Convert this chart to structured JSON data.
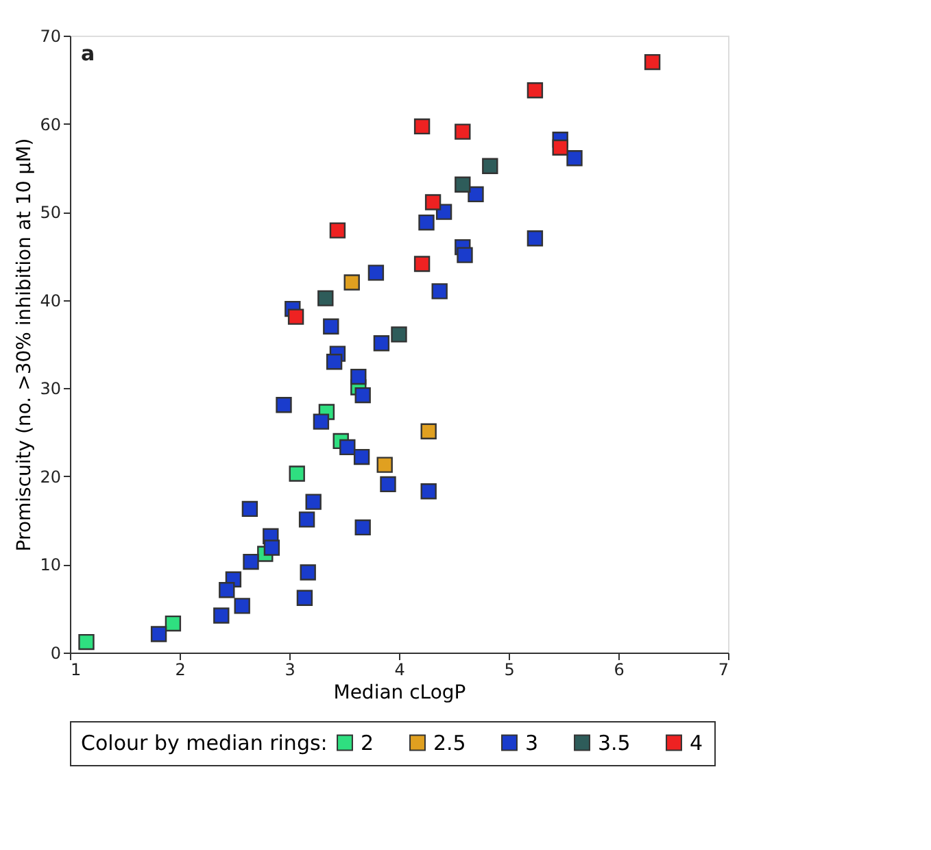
{
  "chart_data": {
    "type": "scatter",
    "xlabel": "Median cLogP",
    "ylabel": "Promiscuity (no. >30% inhibition at 10 μM)",
    "legend_title": "Colour by median rings:",
    "annotations": [
      "a"
    ],
    "xlim": [
      1,
      7
    ],
    "xticks": [
      1,
      2,
      3,
      4,
      5,
      6,
      7
    ],
    "ylim": [
      0,
      70
    ],
    "yticks": [
      0,
      10,
      20,
      30,
      40,
      50,
      60,
      70
    ],
    "grid": false,
    "legend": "bottom",
    "marker": "square",
    "series": [
      {
        "name": "2",
        "color": "#2fdf80",
        "x": [
          1.15,
          1.94,
          2.78,
          3.07,
          3.34,
          3.47,
          3.63
        ],
        "values": [
          1.2,
          3.3,
          11.2,
          20.3,
          27.3,
          24,
          30.1
        ]
      },
      {
        "name": "2.5",
        "color": "#e0a020",
        "x": [
          3.57,
          4.27,
          3.87
        ],
        "values": [
          42,
          25.1,
          21.3
        ]
      },
      {
        "name": "3",
        "color": "#1a3ccc",
        "x": [
          3.03,
          3.38,
          3.79,
          3.84,
          3.44,
          5.47,
          5.6,
          4.7,
          4.41,
          4.25,
          5.24,
          4.58,
          4.6,
          4.37,
          3.41,
          3.63,
          3.67,
          2.95,
          3.29,
          3.53,
          3.66,
          3.9,
          2.64,
          3.22,
          3.16,
          3.67,
          2.83,
          2.84,
          2.65,
          2.49,
          2.43,
          3.17,
          3.14,
          2.57,
          2.38,
          1.81,
          4.27
        ],
        "values": [
          39,
          37,
          43.1,
          35.1,
          33.9,
          58.2,
          56.1,
          52,
          50,
          48.8,
          47,
          46,
          45.1,
          41,
          33,
          31.3,
          29.2,
          28.1,
          26.2,
          23.3,
          22.2,
          19.1,
          16.3,
          17.1,
          15.1,
          14.2,
          13.2,
          11.9,
          10.3,
          8.3,
          7.1,
          9.1,
          6.2,
          5.3,
          4.2,
          2.1,
          18.3
        ]
      },
      {
        "name": "3.5",
        "color": "#2e5c5a",
        "x": [
          3.33,
          4.83,
          4.58,
          4.0
        ],
        "values": [
          40.2,
          55.2,
          53.1,
          36.1
        ]
      },
      {
        "name": "4",
        "color": "#ee2222",
        "x": [
          3.44,
          3.06,
          6.31,
          5.24,
          4.21,
          4.58,
          5.47,
          4.31,
          4.21
        ],
        "values": [
          47.9,
          38.1,
          67,
          63.8,
          59.7,
          59.1,
          57.3,
          51.1,
          44.1
        ]
      }
    ]
  }
}
